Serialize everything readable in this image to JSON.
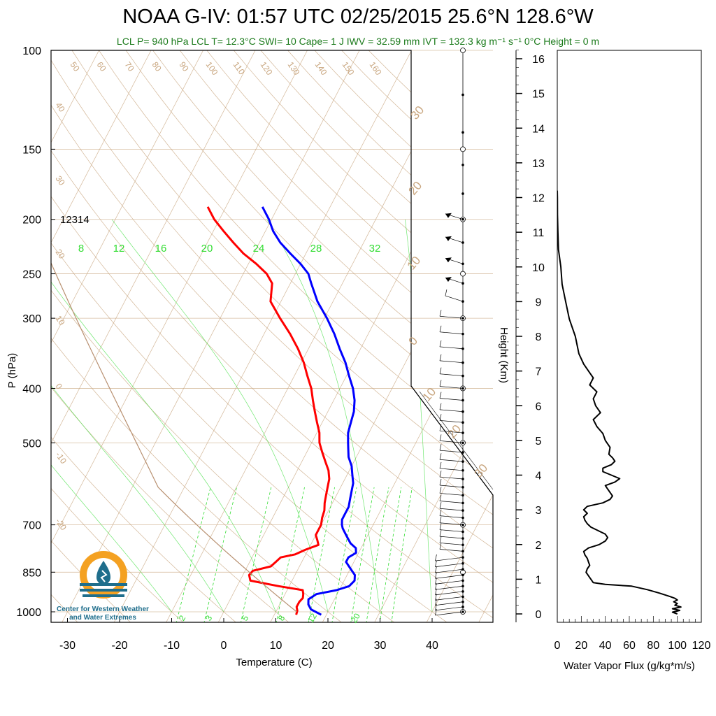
{
  "title": "NOAA G-IV: 01:57 UTC 02/25/2015  25.6°N 128.6°W",
  "subtitle": "LCL P= 940 hPa  LCL T= 12.3°C  SWI= 10  Cape= 1 J  IWV = 32.59 mm  IVT = 132.3 kg m⁻¹ s⁻¹  0°C Height = 0 m",
  "station_label": "12314",
  "logo": {
    "line1": "Center for Western Weather",
    "line2": "and Water Extremes",
    "colors": {
      "sun": "#f4a122",
      "water": "#1f6e8c"
    }
  },
  "colors": {
    "temperature": "#ff0000",
    "dewpoint": "#0000ff",
    "adiabat": "#c8a57e",
    "mixing_ratio": "#33dd33",
    "flux": "#000000"
  },
  "chart_data": [
    {
      "type": "line",
      "name": "skew-t",
      "xlabel": "Temperature (C)",
      "ylabel": "P (hPa)",
      "xlim": [
        -33,
        50
      ],
      "ylim": [
        1050,
        100
      ],
      "x_ticks": [
        -30,
        -20,
        -10,
        0,
        10,
        20,
        30,
        40
      ],
      "pressure_ticks": [
        100,
        150,
        200,
        250,
        300,
        400,
        500,
        700,
        850,
        1000
      ],
      "height_ticks_km": [
        0,
        1,
        2,
        3,
        4,
        5,
        6,
        7,
        8,
        9,
        10,
        11,
        12,
        13,
        14,
        15,
        16
      ],
      "height_label": "Height (Km)",
      "temperature_profile": {
        "pressure": [
          1012,
          995,
          980,
          960,
          945,
          930,
          915,
          900,
          880,
          860,
          845,
          830,
          815,
          800,
          790,
          775,
          760,
          745,
          730,
          715,
          700,
          680,
          660,
          640,
          620,
          600,
          580,
          560,
          540,
          520,
          500,
          480,
          460,
          440,
          420,
          400,
          380,
          360,
          340,
          320,
          300,
          280,
          260,
          250,
          240,
          230,
          220,
          210,
          200,
          190
        ],
        "temperature": [
          14.2,
          14.0,
          13.5,
          13.5,
          13.8,
          13.5,
          13.0,
          8.0,
          2.0,
          1.2,
          1.5,
          4.5,
          5.0,
          5.5,
          8.0,
          9.5,
          11.5,
          10.8,
          10.0,
          10.0,
          10.0,
          9.5,
          9.2,
          8.5,
          8.0,
          7.5,
          7.0,
          6.0,
          4.5,
          3.0,
          1.5,
          0.5,
          -1.0,
          -2.5,
          -4.0,
          -5.5,
          -7.5,
          -9.5,
          -12.0,
          -15.0,
          -18.5,
          -22.0,
          -23.5,
          -25.5,
          -28.5,
          -32.0,
          -35.0,
          -38.0,
          -41.0,
          -43.5
        ]
      },
      "dewpoint_profile": {
        "pressure": [
          1012,
          990,
          970,
          950,
          930,
          915,
          900,
          880,
          860,
          845,
          830,
          815,
          800,
          785,
          770,
          755,
          740,
          725,
          710,
          700,
          685,
          670,
          650,
          630,
          610,
          590,
          570,
          550,
          530,
          510,
          500,
          480,
          460,
          440,
          420,
          400,
          380,
          360,
          340,
          320,
          300,
          280,
          260,
          250,
          240,
          230,
          220,
          210,
          200,
          190
        ],
        "temperature": [
          19.0,
          16.5,
          15.5,
          15.0,
          16.0,
          19.5,
          21.5,
          22.0,
          21.5,
          20.5,
          19.5,
          18.5,
          18.5,
          19.5,
          19.0,
          17.5,
          16.5,
          15.5,
          14.5,
          14.0,
          13.5,
          13.5,
          13.5,
          13.0,
          12.5,
          12.0,
          11.0,
          10.0,
          8.5,
          7.5,
          7.0,
          6.0,
          5.5,
          5.0,
          4.0,
          2.5,
          0.5,
          -1.5,
          -4.0,
          -6.5,
          -9.5,
          -13.0,
          -16.0,
          -17.5,
          -20.0,
          -23.0,
          -26.0,
          -28.5,
          -30.5,
          -33.0
        ]
      },
      "dry_adiabat_labels": [
        -20,
        -10,
        0,
        10,
        20,
        30,
        40,
        50,
        60,
        70,
        80,
        90,
        100,
        110,
        120,
        130,
        140,
        150,
        160
      ],
      "moist_adiabat_labels": [
        0,
        10,
        20,
        30
      ],
      "mixing_ratio_upper_labels": [
        8,
        12,
        16,
        20,
        24,
        28,
        32
      ],
      "mixing_ratio_lower_labels": [
        2,
        3,
        5,
        8,
        12,
        20
      ]
    },
    {
      "type": "line",
      "name": "water-vapor-flux",
      "xlabel": "Water Vapor Flux (g/kg*m/s)",
      "xlim": [
        0,
        120
      ],
      "ylim": [
        0,
        16.5
      ],
      "x_ticks": [
        0,
        20,
        40,
        60,
        80,
        100,
        120
      ],
      "height": [
        0.0,
        0.05,
        0.1,
        0.15,
        0.2,
        0.25,
        0.3,
        0.35,
        0.4,
        0.45,
        0.5,
        0.6,
        0.7,
        0.8,
        0.85,
        0.9,
        1.0,
        1.1,
        1.2,
        1.3,
        1.4,
        1.5,
        1.6,
        1.7,
        1.8,
        1.9,
        2.0,
        2.1,
        2.2,
        2.3,
        2.4,
        2.5,
        2.6,
        2.7,
        2.8,
        2.9,
        3.0,
        3.1,
        3.2,
        3.3,
        3.4,
        3.5,
        3.6,
        3.7,
        3.8,
        3.9,
        4.0,
        4.1,
        4.2,
        4.3,
        4.4,
        4.5,
        4.6,
        4.8,
        5.0,
        5.2,
        5.4,
        5.6,
        5.8,
        6.0,
        6.2,
        6.4,
        6.6,
        6.8,
        7.0,
        7.2,
        7.5,
        8.0,
        8.5,
        9.0,
        9.5,
        10.0,
        10.5,
        11.0,
        11.5,
        12.0,
        12.2
      ],
      "flux": [
        100,
        96,
        102,
        96,
        103,
        98,
        100,
        97,
        100,
        98,
        94,
        85,
        75,
        62,
        40,
        30,
        28,
        26,
        24,
        25,
        27,
        26,
        25,
        23,
        22,
        26,
        35,
        40,
        42,
        40,
        34,
        28,
        25,
        23,
        22,
        25,
        22,
        25,
        38,
        44,
        46,
        44,
        42,
        40,
        48,
        52,
        45,
        38,
        38,
        45,
        48,
        46,
        43,
        44,
        40,
        38,
        33,
        30,
        36,
        32,
        30,
        33,
        27,
        30,
        26,
        22,
        18,
        15,
        10,
        7,
        4,
        3,
        1,
        0.5,
        0.2,
        0.1,
        0
      ]
    }
  ]
}
